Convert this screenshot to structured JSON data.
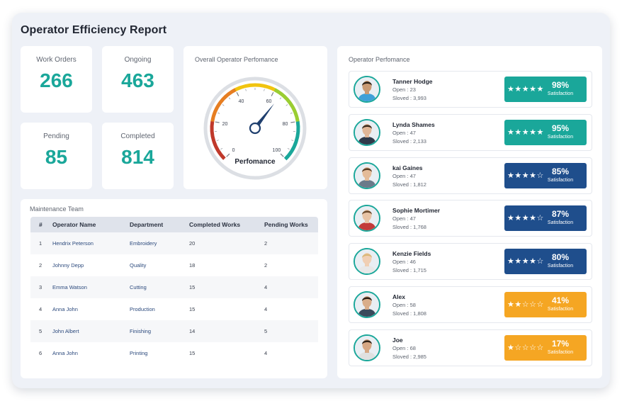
{
  "title": "Operator Efficiency Report",
  "stats": [
    {
      "label": "Work Orders",
      "value": "266"
    },
    {
      "label": "Ongoing",
      "value": "463"
    },
    {
      "label": "Pending",
      "value": "85"
    },
    {
      "label": "Completed",
      "value": "814"
    }
  ],
  "gauge": {
    "title": "Overall Operator Perfomance",
    "label": "Perfomance",
    "value": 64,
    "min": 0,
    "max": 100,
    "ticks": [
      "0",
      "20",
      "40",
      "60",
      "80",
      "100"
    ],
    "colors": [
      "#c0392b",
      "#e67e22",
      "#f1c40f",
      "#9acd32",
      "#1aa79a"
    ],
    "needle_color": "#1f3f6e"
  },
  "maintenance": {
    "title": "Maintenance Team",
    "headers": [
      "#",
      "Operator Name",
      "Department",
      "Completed Works",
      "Pending Works"
    ],
    "rows": [
      [
        "1",
        "Hendrix Peterson",
        "Embroidery",
        "20",
        "2"
      ],
      [
        "2",
        "Johnny Depp",
        "Quality",
        "18",
        "2"
      ],
      [
        "3",
        "Emma Watson",
        "Cutting",
        "15",
        "4"
      ],
      [
        "4",
        "Anna John",
        "Production",
        "15",
        "4"
      ],
      [
        "5",
        "John Albert",
        "Finishing",
        "14",
        "5"
      ],
      [
        "6",
        "Anna John",
        "Printing",
        "15",
        "4"
      ]
    ]
  },
  "operators": {
    "title": "Operator Perfomance",
    "sat_label": "Satisfaction",
    "colors": {
      "high": "#1aa79a",
      "mid": "#1f4e8c",
      "low": "#f5a623"
    },
    "items": [
      {
        "name": "Tanner Hodge",
        "open": "Open  : 23",
        "solved": "Sloved : 3,993",
        "pct": "98%",
        "stars": "★★★★★",
        "tier": "high",
        "hair": "#2b2118",
        "skin": "#c99a74",
        "shirt": "#3fa0d8"
      },
      {
        "name": "Lynda Shames",
        "open": "Open  : 47",
        "solved": "Sloved : 2,133",
        "pct": "95%",
        "stars": "★★★★★",
        "tier": "high",
        "hair": "#3a2a1e",
        "skin": "#e0b697",
        "shirt": "#2f3a4a"
      },
      {
        "name": "kai Gaines",
        "open": "Open  : 47",
        "solved": "Sloved : 1,812",
        "pct": "85%",
        "stars": "★★★★☆",
        "tier": "mid",
        "hair": "#5a3b22",
        "skin": "#e4bb98",
        "shirt": "#6b7a8a"
      },
      {
        "name": "Sophie Mortimer",
        "open": "Open  : 47",
        "solved": "Sloved : 1,768",
        "pct": "87%",
        "stars": "★★★★☆",
        "tier": "mid",
        "hair": "#6a4a2e",
        "skin": "#e8c3a5",
        "shirt": "#c33a3a"
      },
      {
        "name": "Kenzie Fields",
        "open": "Open  : 46",
        "solved": "Sloved : 1,715",
        "pct": "80%",
        "stars": "★★★★☆",
        "tier": "mid",
        "hair": "#d9b777",
        "skin": "#f0cfb4",
        "shirt": "#e8e8e8"
      },
      {
        "name": "Alex",
        "open": "Open  : 58",
        "solved": "Sloved : 1,808",
        "pct": "41%",
        "stars": "★★☆☆☆",
        "tier": "low",
        "hair": "#2a1d14",
        "skin": "#d9ad8a",
        "shirt": "#3a4a5c"
      },
      {
        "name": "Joe",
        "open": "Open  : 68",
        "solved": "Sloved : 2,985",
        "pct": "17%",
        "stars": "★☆☆☆☆",
        "tier": "low",
        "hair": "#2e2219",
        "skin": "#d6a784",
        "shirt": "#e0e0e0"
      }
    ]
  }
}
